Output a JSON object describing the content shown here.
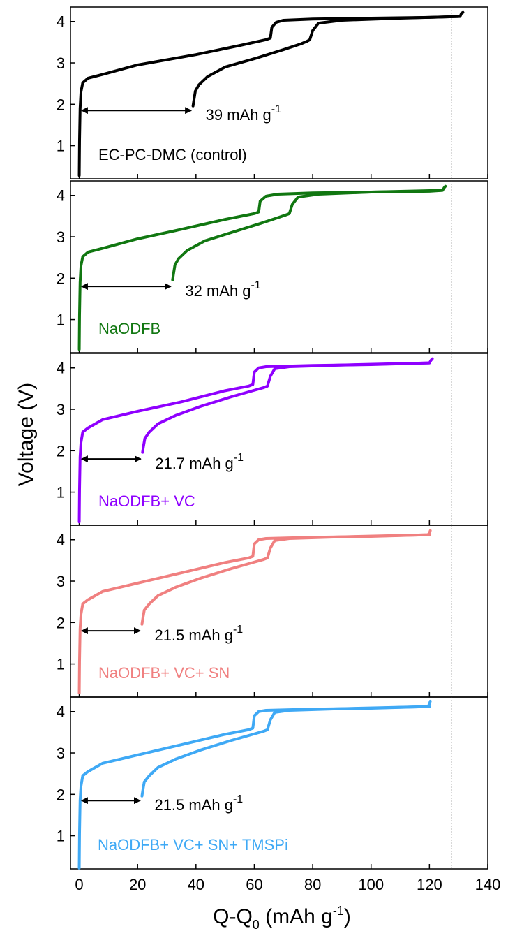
{
  "chart_data": {
    "type": "line",
    "xlabel": "Q-Q",
    "xlabel_sub": "0",
    "xlabel_unit": " (mAh g",
    "xlabel_unit_sup": "-1",
    "xlabel_unit_close": ")",
    "ylabel": "Voltage (V)",
    "xlim": [
      -3,
      140
    ],
    "x_ticks": [
      0,
      20,
      40,
      60,
      80,
      100,
      120,
      140
    ],
    "ylim": [
      0.2,
      4.35
    ],
    "y_ticks": [
      1,
      2,
      3,
      4
    ],
    "reference_x": 127.5,
    "panels": [
      {
        "label": "EC-PC-DMC (control)",
        "color": "#000000",
        "capacity_loss": 39,
        "capacity_text": "39 mAh g",
        "capacity_sup": "-1",
        "arrow_y": 1.85,
        "series": [
          {
            "name": "",
            "x": [
              0,
              0.1,
              0.3,
              0.6,
              1.2,
              3,
              8,
              20,
              40,
              55,
              64,
              65.5,
              66,
              67.5,
              70,
              80,
              100,
              120,
              130.5,
              131,
              131.5
            ],
            "y": [
              0.28,
              1.1,
              1.9,
              2.3,
              2.52,
              2.63,
              2.72,
              2.95,
              3.2,
              3.42,
              3.56,
              3.6,
              3.86,
              3.98,
              4.03,
              4.06,
              4.08,
              4.1,
              4.12,
              4.2,
              4.22
            ]
          },
          {
            "name": "",
            "x": [
              39,
              39.3,
              39.8,
              41,
              44,
              50,
              60,
              70,
              76,
              78,
              79,
              80,
              82,
              90,
              110,
              130
            ],
            "y": [
              1.96,
              2.1,
              2.32,
              2.47,
              2.67,
              2.9,
              3.1,
              3.32,
              3.46,
              3.52,
              3.56,
              3.78,
              3.96,
              4.03,
              4.08,
              4.12
            ]
          }
        ]
      },
      {
        "label": "NaODFB",
        "color": "#117711",
        "capacity_loss": 32,
        "capacity_text": "32 mAh g",
        "capacity_sup": "-1",
        "arrow_y": 1.8,
        "series": [
          {
            "name": "",
            "x": [
              0,
              0.1,
              0.3,
              0.6,
              1.2,
              3,
              8,
              20,
              35,
              50,
              60,
              61.5,
              62,
              64,
              68,
              80,
              100,
              120,
              124.5,
              125,
              125.5
            ],
            "y": [
              0.28,
              1.1,
              1.9,
              2.3,
              2.52,
              2.63,
              2.72,
              2.95,
              3.18,
              3.42,
              3.56,
              3.6,
              3.86,
              3.98,
              4.03,
              4.06,
              4.08,
              4.1,
              4.12,
              4.18,
              4.22
            ]
          },
          {
            "name": "",
            "x": [
              32,
              32.3,
              32.8,
              34,
              37,
              43,
              52,
              62,
              68,
              70.5,
              72,
              73,
              75,
              82,
              100,
              124
            ],
            "y": [
              1.96,
              2.1,
              2.32,
              2.47,
              2.67,
              2.9,
              3.1,
              3.32,
              3.46,
              3.52,
              3.56,
              3.78,
              3.96,
              4.03,
              4.08,
              4.12
            ]
          }
        ]
      },
      {
        "label": "NaODFB+ VC",
        "color": "#8F00FF",
        "capacity_loss": 21.7,
        "capacity_text": "21.7 mAh g",
        "capacity_sup": "-1",
        "arrow_y": 1.8,
        "series": [
          {
            "name": "",
            "x": [
              0,
              0.1,
              0.3,
              0.6,
              1.2,
              3,
              8,
              20,
              35,
              50,
              58,
              59.5,
              60,
              61.5,
              64,
              80,
              100,
              120,
              120.5,
              121
            ],
            "y": [
              0.28,
              1.05,
              1.85,
              2.2,
              2.45,
              2.55,
              2.75,
              2.95,
              3.18,
              3.45,
              3.56,
              3.6,
              3.9,
              4.0,
              4.03,
              4.06,
              4.08,
              4.12,
              4.18,
              4.22
            ]
          },
          {
            "name": "",
            "x": [
              21.7,
              22,
              22.5,
              24,
              27,
              33,
              42,
              52,
              60,
              63,
              64.5,
              65.5,
              67,
              72,
              90,
              120
            ],
            "y": [
              1.96,
              2.1,
              2.3,
              2.45,
              2.65,
              2.85,
              3.08,
              3.3,
              3.46,
              3.52,
              3.56,
              3.8,
              3.98,
              4.03,
              4.07,
              4.12
            ]
          }
        ]
      },
      {
        "label": "NaODFB+ VC+ SN",
        "color": "#F08080",
        "capacity_loss": 21.5,
        "capacity_text": "21.5 mAh g",
        "capacity_sup": "-1",
        "arrow_y": 1.8,
        "series": [
          {
            "name": "",
            "x": [
              0,
              0.1,
              0.3,
              0.6,
              1.2,
              3,
              8,
              20,
              35,
              50,
              58,
              59.5,
              60,
              61.5,
              64,
              80,
              100,
              119.5,
              120,
              120.3
            ],
            "y": [
              0.3,
              1.05,
              1.85,
              2.2,
              2.45,
              2.55,
              2.75,
              2.95,
              3.2,
              3.45,
              3.56,
              3.6,
              3.9,
              4.0,
              4.03,
              4.06,
              4.08,
              4.12,
              4.16,
              4.22
            ]
          },
          {
            "name": "",
            "x": [
              21.5,
              21.8,
              22.3,
              24,
              27,
              33,
              42,
              52,
              60,
              63,
              64.5,
              65.5,
              67,
              72,
              90,
              120
            ],
            "y": [
              1.96,
              2.1,
              2.3,
              2.45,
              2.65,
              2.85,
              3.08,
              3.3,
              3.46,
              3.52,
              3.56,
              3.8,
              3.98,
              4.03,
              4.07,
              4.12
            ]
          }
        ]
      },
      {
        "label": "NaODFB+ VC+ SN+ TMSPi",
        "color": "#3FA9F5",
        "capacity_loss": 21.5,
        "capacity_text": "21.5 mAh g",
        "capacity_sup": "-1",
        "arrow_y": 1.85,
        "series": [
          {
            "name": "",
            "x": [
              0,
              0.1,
              0.3,
              0.6,
              1.2,
              3,
              8,
              20,
              35,
              50,
              58,
              59.5,
              60,
              61.5,
              64,
              80,
              100,
              119.5,
              120,
              120.3
            ],
            "y": [
              0.22,
              1.05,
              1.85,
              2.2,
              2.45,
              2.55,
              2.75,
              2.95,
              3.2,
              3.45,
              3.56,
              3.6,
              3.9,
              4.0,
              4.03,
              4.06,
              4.08,
              4.12,
              4.18,
              4.25
            ]
          },
          {
            "name": "",
            "x": [
              21.5,
              21.8,
              22.3,
              24,
              27,
              33,
              42,
              52,
              60,
              63,
              64.5,
              65.5,
              67,
              72,
              90,
              120
            ],
            "y": [
              1.96,
              2.1,
              2.3,
              2.45,
              2.65,
              2.85,
              3.08,
              3.3,
              3.46,
              3.52,
              3.56,
              3.8,
              3.98,
              4.03,
              4.07,
              4.12
            ]
          }
        ]
      }
    ]
  }
}
